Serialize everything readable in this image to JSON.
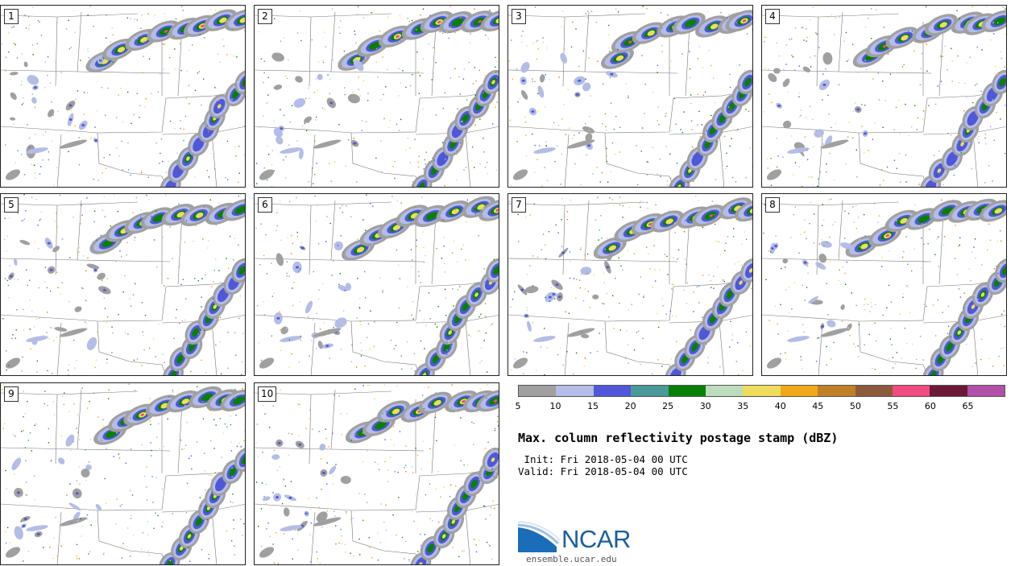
{
  "panels": [
    {
      "label": "1"
    },
    {
      "label": "2"
    },
    {
      "label": "3"
    },
    {
      "label": "4"
    },
    {
      "label": "5"
    },
    {
      "label": "6"
    },
    {
      "label": "7"
    },
    {
      "label": "8"
    },
    {
      "label": "9"
    },
    {
      "label": "10"
    }
  ],
  "legend": {
    "colors": [
      "#a0a0a0",
      "#b4bce8",
      "#5058d8",
      "#4a9a9a",
      "#088008",
      "#bcdcbc",
      "#f0dc5c",
      "#f0a818",
      "#c08028",
      "#8c5a3c",
      "#f04c80",
      "#6c1838",
      "#b050a8"
    ],
    "ticks": [
      "5",
      "10",
      "15",
      "20",
      "25",
      "30",
      "35",
      "40",
      "45",
      "50",
      "55",
      "60",
      "65"
    ]
  },
  "title": "Max. column reflectivity postage stamp (dBZ)",
  "init_text": " Init: Fri 2018-05-04 00 UTC",
  "valid_text": "Valid: Fri 2018-05-04 00 UTC",
  "logo_text": "NCAR",
  "site_text": "ensemble.ucar.edu",
  "icon": "ncar-logo-icon"
}
